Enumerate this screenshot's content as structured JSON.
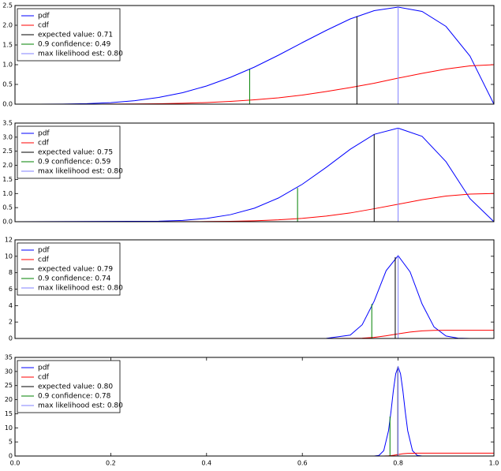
{
  "chart_data": [
    {
      "type": "line",
      "x": [
        0,
        0.05,
        0.1,
        0.15,
        0.2,
        0.25,
        0.3,
        0.35,
        0.4,
        0.45,
        0.5,
        0.55,
        0.6,
        0.65,
        0.7,
        0.75,
        0.8,
        0.85,
        0.9,
        0.95,
        1
      ],
      "series": [
        {
          "name": "pdf",
          "color": "#0000ff",
          "values": [
            0,
            0.0002,
            0.0027,
            0.013,
            0.038,
            0.088,
            0.17,
            0.29,
            0.46,
            0.68,
            0.94,
            1.24,
            1.56,
            1.87,
            2.16,
            2.37,
            2.46,
            2.35,
            1.97,
            1.22,
            0
          ]
        },
        {
          "name": "cdf",
          "color": "#ff0000",
          "values": [
            0,
            0,
            0.0001,
            0.0004,
            0.0016,
            0.0046,
            0.011,
            0.022,
            0.041,
            0.069,
            0.11,
            0.16,
            0.23,
            0.32,
            0.42,
            0.53,
            0.66,
            0.78,
            0.89,
            0.97,
            1
          ]
        }
      ],
      "markers": [
        {
          "name": "expected value:  0.71",
          "color": "#000000",
          "x": 0.714,
          "y": 2.23
        },
        {
          "name": "0.9 confidence:  0.49",
          "color": "#008000",
          "x": 0.49,
          "y": 0.88
        },
        {
          "name": "max likelihood est:  0.80",
          "color": "#8080ff",
          "x": 0.8,
          "y": 2.46
        }
      ],
      "xlim": [
        0,
        1
      ],
      "ylim": [
        0,
        2.5
      ],
      "yticks": [
        {
          "value": 0,
          "label": "0.0"
        },
        0.5,
        {
          "value": 1,
          "label": "1.0"
        },
        1.5,
        {
          "value": 2,
          "label": "2.0"
        },
        2.5
      ]
    },
    {
      "type": "line",
      "x": [
        0,
        0.3,
        0.35,
        0.4,
        0.45,
        0.5,
        0.55,
        0.6,
        0.65,
        0.7,
        0.75,
        0.8,
        0.85,
        0.9,
        0.95,
        1
      ],
      "series": [
        {
          "name": "pdf",
          "color": "#0000ff",
          "values": [
            0,
            0.016,
            0.047,
            0.117,
            0.25,
            0.48,
            0.84,
            1.33,
            1.93,
            2.57,
            3.1,
            3.32,
            3.03,
            2.13,
            0.82,
            0
          ]
        },
        {
          "name": "cdf",
          "color": "#ff0000",
          "values": [
            0,
            0.0006,
            0.002,
            0.006,
            0.015,
            0.033,
            0.065,
            0.119,
            0.2,
            0.31,
            0.46,
            0.62,
            0.78,
            0.91,
            0.98,
            1
          ]
        }
      ],
      "markers": [
        {
          "name": "expected value:  0.75",
          "color": "#000000",
          "x": 0.75,
          "y": 3.1
        },
        {
          "name": "0.9 confidence:  0.59",
          "color": "#008000",
          "x": 0.59,
          "y": 1.2
        },
        {
          "name": "max likelihood est:  0.80",
          "color": "#8080ff",
          "x": 0.8,
          "y": 3.32
        }
      ],
      "xlim": [
        0,
        1
      ],
      "ylim": [
        0,
        3.5
      ],
      "yticks": [
        {
          "value": 0,
          "label": "0.0"
        },
        0.5,
        {
          "value": 1,
          "label": "1.0"
        },
        1.5,
        {
          "value": 2,
          "label": "2.0"
        },
        2.5,
        {
          "value": 3,
          "label": "3.0"
        },
        3.5
      ]
    },
    {
      "type": "line",
      "x": [
        0,
        0.6,
        0.65,
        0.7,
        0.725,
        0.75,
        0.775,
        0.8,
        0.825,
        0.85,
        0.875,
        0.9,
        0.925,
        0.95,
        1
      ],
      "series": [
        {
          "name": "pdf",
          "color": "#0000ff",
          "values": [
            0,
            0,
            0.01,
            0.41,
            1.67,
            4.54,
            8.25,
            10.07,
            8.1,
            4.2,
            1.4,
            0.3,
            0.04,
            0,
            0
          ]
        },
        {
          "name": "cdf",
          "color": "#ff0000",
          "values": [
            0,
            0,
            0,
            0.009,
            0.041,
            0.13,
            0.32,
            0.56,
            0.78,
            0.92,
            0.98,
            0.996,
            1,
            1,
            1
          ]
        }
      ],
      "markers": [
        {
          "name": "expected value:  0.79",
          "color": "#000000",
          "x": 0.794,
          "y": 9.9
        },
        {
          "name": "0.9 confidence:  0.74",
          "color": "#008000",
          "x": 0.745,
          "y": 4.2
        },
        {
          "name": "max likelihood est:  0.80",
          "color": "#8080ff",
          "x": 0.8,
          "y": 10.07
        }
      ],
      "xlim": [
        0,
        1
      ],
      "ylim": [
        0,
        12
      ],
      "yticks": [
        0,
        2,
        4,
        6,
        8,
        10,
        12
      ]
    },
    {
      "type": "line",
      "x": [
        0,
        0.74,
        0.75,
        0.76,
        0.77,
        0.78,
        0.785,
        0.79,
        0.795,
        0.8,
        0.805,
        0.81,
        0.815,
        0.82,
        0.83,
        0.84,
        0.85,
        1
      ],
      "series": [
        {
          "name": "pdf",
          "color": "#0000ff",
          "values": [
            0,
            0,
            0.01,
            0.21,
            1.88,
            9,
            15.6,
            23.1,
            29.2,
            31.6,
            29.2,
            23.1,
            15.6,
            9,
            1.88,
            0.21,
            0,
            0
          ]
        },
        {
          "name": "cdf",
          "color": "#ff0000",
          "values": [
            0,
            0,
            0,
            0.001,
            0.01,
            0.062,
            0.13,
            0.23,
            0.37,
            0.52,
            0.67,
            0.8,
            0.89,
            0.95,
            0.992,
            1,
            1,
            1
          ]
        }
      ],
      "markers": [
        {
          "name": "expected value:  0.80",
          "color": "#000000",
          "x": 0.7994,
          "y": 31.6
        },
        {
          "name": "0.9 confidence:  0.78",
          "color": "#008000",
          "x": 0.783,
          "y": 14
        },
        {
          "name": "max likelihood est:  0.80",
          "color": "#8080ff",
          "x": 0.8,
          "y": 31.6
        }
      ],
      "xlim": [
        0,
        1
      ],
      "ylim": [
        0,
        35
      ],
      "yticks": [
        0,
        5,
        10,
        15,
        20,
        25,
        30,
        35
      ],
      "xticks": [
        {
          "value": 0,
          "label": "0.0"
        },
        0.2,
        0.4,
        0.6,
        0.8,
        {
          "value": 1,
          "label": "1.0"
        }
      ]
    }
  ]
}
